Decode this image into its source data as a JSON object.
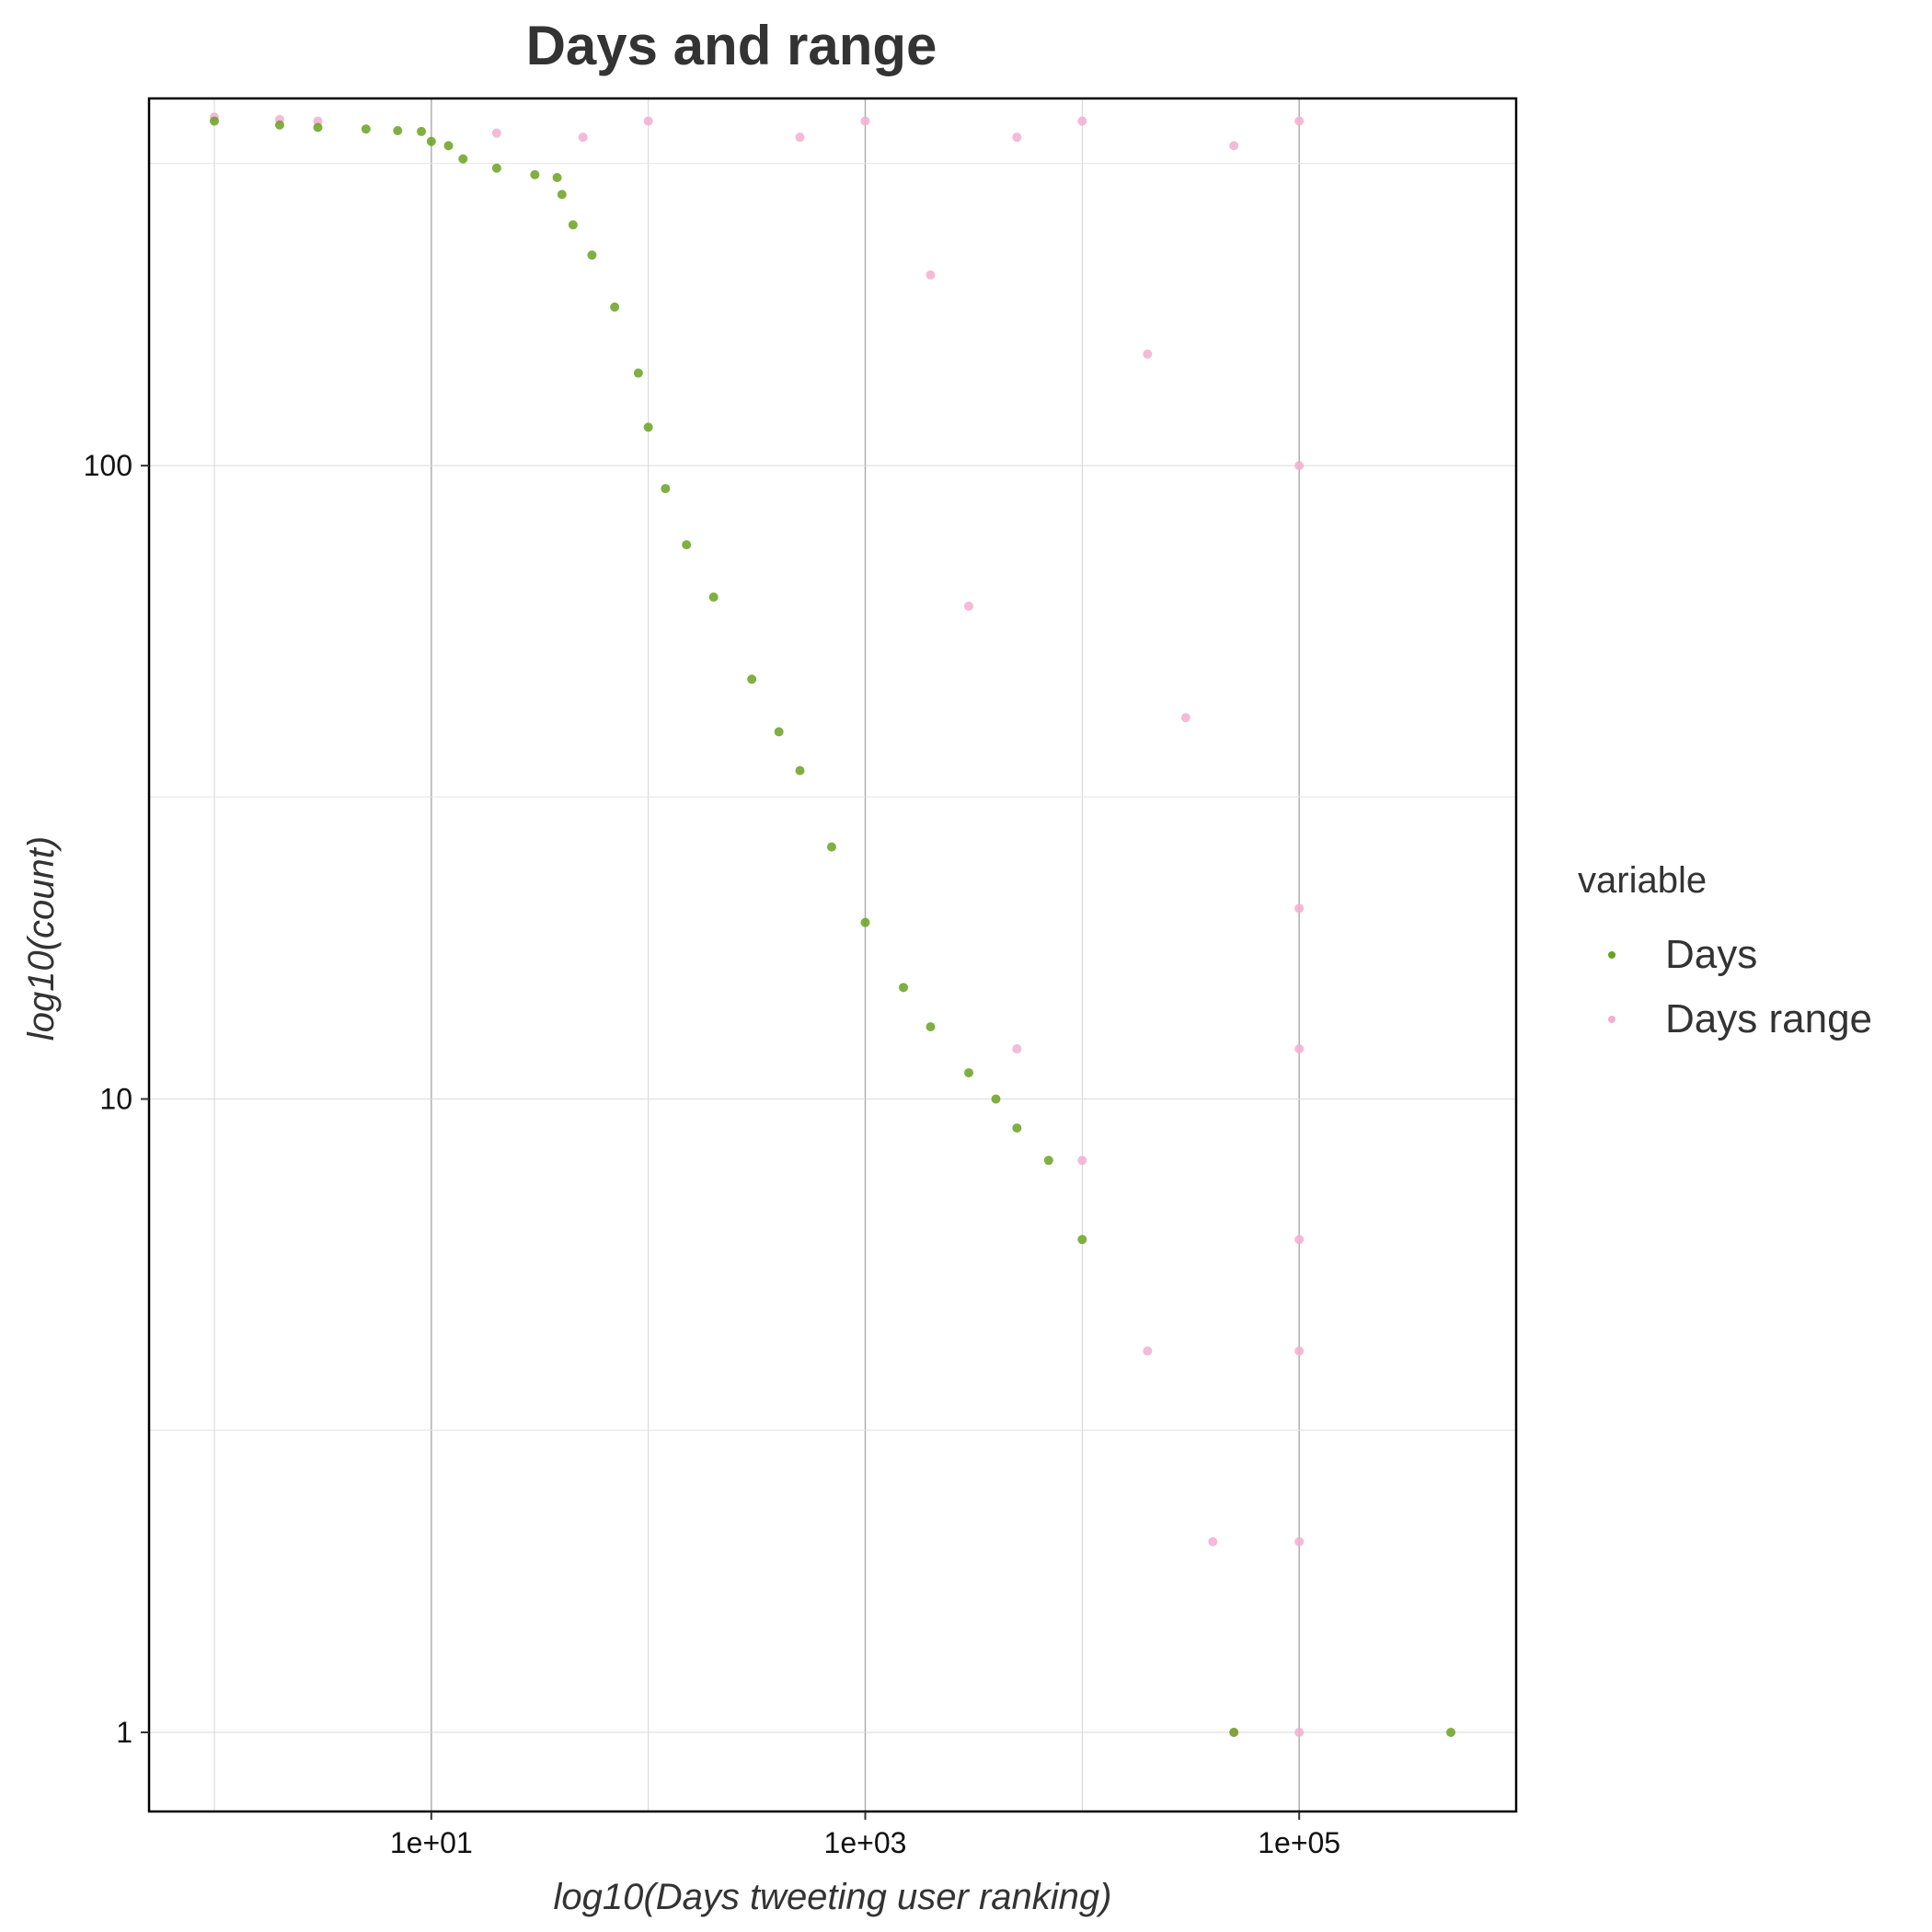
{
  "chart_data": {
    "type": "scatter",
    "title": "Days and range",
    "xlabel": "log10(Days tweeting user ranking)",
    "ylabel": "log10(count)",
    "x_scale": "log10",
    "y_scale": "log10",
    "xlim": [
      0.5,
      1000000
    ],
    "ylim": [
      0.75,
      380
    ],
    "x_ticks": [
      {
        "value": 10,
        "label": "1e+01"
      },
      {
        "value": 1000,
        "label": "1e+03"
      },
      {
        "value": 100000,
        "label": "1e+05"
      }
    ],
    "y_ticks": [
      {
        "value": 1,
        "label": "1"
      },
      {
        "value": 10,
        "label": "10"
      },
      {
        "value": 100,
        "label": "100"
      }
    ],
    "grid": true,
    "legend": {
      "title": "variable",
      "position": "right",
      "entries": [
        "Days",
        "Days range"
      ]
    },
    "series": [
      {
        "name": "Days",
        "color": "#6aa121",
        "points": [
          [
            1,
            350
          ],
          [
            2,
            345
          ],
          [
            3,
            342
          ],
          [
            5,
            340
          ],
          [
            7,
            338
          ],
          [
            9,
            337
          ],
          [
            10,
            325
          ],
          [
            12,
            320
          ],
          [
            14,
            305
          ],
          [
            20,
            295
          ],
          [
            30,
            288
          ],
          [
            38,
            285
          ],
          [
            40,
            268
          ],
          [
            45,
            240
          ],
          [
            55,
            215
          ],
          [
            70,
            178
          ],
          [
            90,
            140
          ],
          [
            100,
            115
          ],
          [
            120,
            92
          ],
          [
            150,
            75
          ],
          [
            200,
            62
          ],
          [
            300,
            46
          ],
          [
            400,
            38
          ],
          [
            500,
            33
          ],
          [
            700,
            25
          ],
          [
            1000,
            19
          ],
          [
            1500,
            15
          ],
          [
            2000,
            13
          ],
          [
            3000,
            11
          ],
          [
            4000,
            10
          ],
          [
            5000,
            9
          ],
          [
            7000,
            8
          ],
          [
            10000,
            6
          ],
          [
            50000,
            1
          ],
          [
            500000,
            1
          ]
        ]
      },
      {
        "name": "Days range",
        "color": "#f2aed0",
        "points": [
          [
            1,
            355
          ],
          [
            2,
            352
          ],
          [
            3,
            350
          ],
          [
            20,
            335
          ],
          [
            100,
            350
          ],
          [
            1000,
            350
          ],
          [
            10000,
            350
          ],
          [
            100000,
            350
          ],
          [
            50,
            330
          ],
          [
            500,
            330
          ],
          [
            5000,
            330
          ],
          [
            50000,
            320
          ],
          [
            2000,
            200
          ],
          [
            20000,
            150
          ],
          [
            100000,
            100
          ],
          [
            3000,
            60
          ],
          [
            30000,
            40
          ],
          [
            100000,
            20
          ],
          [
            5000,
            12
          ],
          [
            100000,
            12
          ],
          [
            10000,
            8
          ],
          [
            100000,
            6
          ],
          [
            20000,
            4
          ],
          [
            100000,
            4
          ],
          [
            40000,
            2
          ],
          [
            100000,
            2
          ],
          [
            50000,
            1
          ],
          [
            100000,
            1
          ]
        ]
      }
    ]
  }
}
